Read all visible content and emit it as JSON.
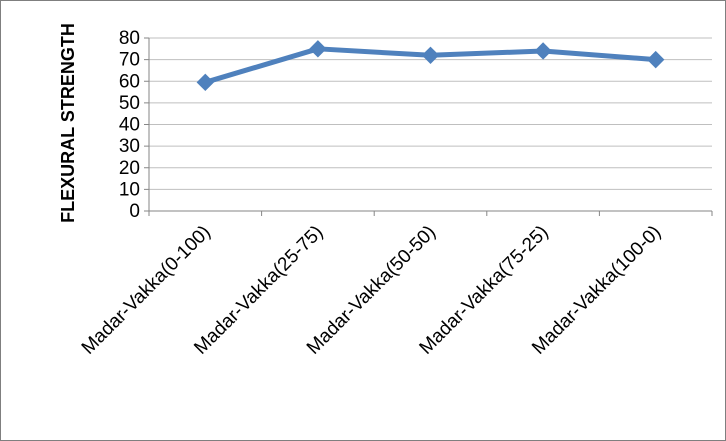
{
  "chart_data": {
    "type": "line",
    "title": "",
    "xlabel": "",
    "ylabel": "FLEXURAL STRENGTH",
    "categories": [
      "Madar-Vakka(0-100)",
      "Madar-Vakka(25-75)",
      "Madar-Vakka(50-50)",
      "Madar-Vakka(75-25)",
      "Madar-Vakka(100-0)"
    ],
    "series": [
      {
        "values": [
          59.5,
          75.0,
          72.0,
          74.0,
          70.0
        ],
        "color": "#4f81bd",
        "marker": "diamond"
      }
    ],
    "ylim": [
      0,
      80
    ],
    "yticks": [
      "0",
      "10",
      "20",
      "30",
      "40",
      "50",
      "60",
      "70",
      "80"
    ],
    "grid": true,
    "legend": "none",
    "colors": {
      "line": "#4f81bd",
      "gridline": "#bfbfbf",
      "axis": "#868686"
    }
  }
}
